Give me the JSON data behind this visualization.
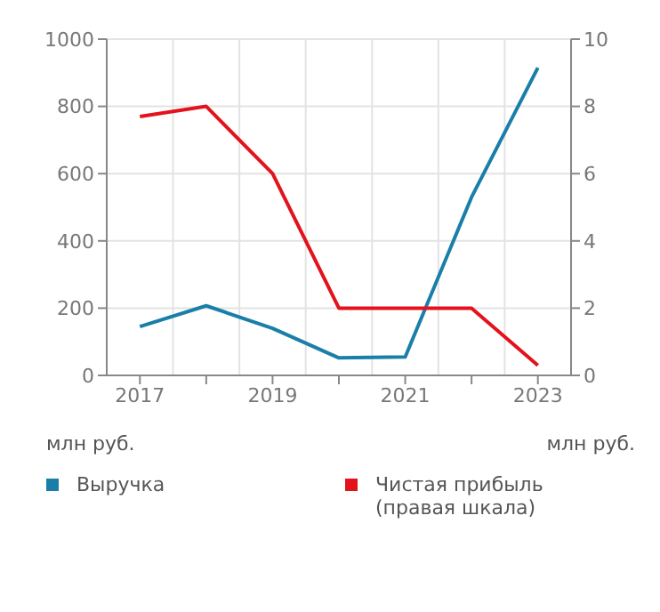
{
  "chart_data": {
    "type": "line",
    "categories": [
      "2017",
      null,
      "2019",
      null,
      "2021",
      null,
      "2023"
    ],
    "series": [
      {
        "name": "Выручка",
        "color": "#1a7fa8",
        "values": [
          145,
          207,
          140,
          52,
          55,
          530,
          915
        ]
      },
      {
        "name": "Чистая прибыль (правая шкала)",
        "color": "#e3121b",
        "axis": "y2",
        "values": [
          7.7,
          8.0,
          6.0,
          2.0,
          2.0,
          2.0,
          0.3
        ]
      }
    ],
    "ylabel": "млн руб.",
    "y2label": "млн руб.",
    "ylim": [
      0,
      1000
    ],
    "yticks": [
      0,
      200,
      400,
      600,
      800,
      1000
    ],
    "y2lim": [
      0,
      10
    ],
    "y2ticks": [
      0,
      2,
      4,
      6,
      8,
      10
    ],
    "grid": true,
    "legend": "bottom",
    "marker": "none",
    "line_style": "solid"
  }
}
